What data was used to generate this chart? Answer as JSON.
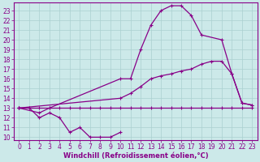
{
  "xlabel": "Windchill (Refroidissement éolien,°C)",
  "xlim_min": -0.5,
  "xlim_max": 23.5,
  "ylim_min": 9.7,
  "ylim_max": 23.8,
  "xticks": [
    0,
    1,
    2,
    3,
    4,
    5,
    6,
    7,
    8,
    9,
    10,
    11,
    12,
    13,
    14,
    15,
    16,
    17,
    18,
    19,
    20,
    21,
    22,
    23
  ],
  "yticks": [
    10,
    11,
    12,
    13,
    14,
    15,
    16,
    17,
    18,
    19,
    20,
    21,
    22,
    23
  ],
  "bg_color": "#cce9e9",
  "grid_color": "#aad0d0",
  "line_color": "#880088",
  "tick_fontsize": 5.5,
  "xlabel_fontsize": 6,
  "flat_x": [
    0,
    1,
    2,
    3,
    4,
    5,
    6,
    7,
    8,
    9,
    10,
    11,
    12,
    13,
    14,
    15,
    16,
    17,
    18,
    19,
    20,
    21,
    22,
    23
  ],
  "flat_y": [
    13,
    13,
    13,
    13,
    13,
    13,
    13,
    13,
    13,
    13,
    13,
    13,
    13,
    13,
    13,
    13,
    13,
    13,
    13,
    13,
    13,
    13,
    13,
    13
  ],
  "wavy_x": [
    0,
    1,
    2,
    3,
    4,
    5,
    6,
    7,
    8,
    9,
    10
  ],
  "wavy_y": [
    13,
    13,
    12,
    12.5,
    12,
    10.5,
    11,
    10,
    10,
    10,
    10.5
  ],
  "peak_x": [
    0,
    2,
    3,
    10,
    11,
    12,
    13,
    14,
    15,
    16,
    17,
    18,
    20,
    21,
    22,
    23
  ],
  "peak_y": [
    13,
    12.5,
    13,
    16,
    16,
    19,
    21.5,
    23,
    23.5,
    23.5,
    22.5,
    20.5,
    20,
    16.5,
    13.5,
    13.3
  ],
  "diag_x": [
    0,
    10,
    11,
    12,
    13,
    14,
    15,
    16,
    17,
    18,
    19,
    20,
    21,
    22,
    23
  ],
  "diag_y": [
    13,
    14,
    14.5,
    15.2,
    16,
    16.3,
    16.5,
    16.8,
    17,
    17.5,
    17.8,
    17.8,
    16.5,
    13.5,
    13.3
  ]
}
